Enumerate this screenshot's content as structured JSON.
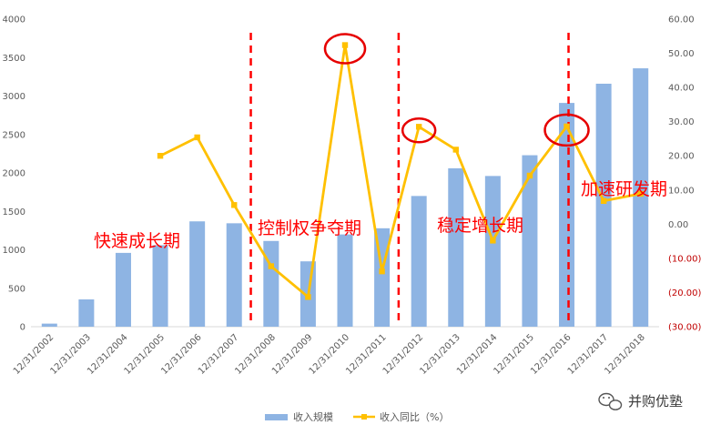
{
  "chart_data": {
    "type": "bar",
    "categories": [
      "12/31/2002",
      "12/31/2003",
      "12/31/2004",
      "12/31/2005",
      "12/31/2006",
      "12/31/2007",
      "12/31/2008",
      "12/31/2009",
      "12/31/2010",
      "12/31/2011",
      "12/31/2012",
      "12/31/2013",
      "12/31/2014",
      "12/31/2015",
      "12/31/2016",
      "12/31/2017",
      "12/31/2018"
    ],
    "series": [
      {
        "name": "收入规模",
        "type": "bar",
        "axis": "left",
        "color": "#8eb4e3",
        "values": [
          40,
          355,
          960,
          1060,
          1370,
          1345,
          1115,
          850,
          1200,
          1280,
          1700,
          2060,
          1960,
          2230,
          2910,
          3160,
          3360
        ]
      },
      {
        "name": "收入同比（%）",
        "type": "line",
        "axis": "right",
        "color": "#ffc000",
        "values": [
          null,
          null,
          null,
          20.0,
          25.4,
          5.6,
          -12.3,
          -21.3,
          52.4,
          -13.8,
          28.5,
          21.8,
          -4.8,
          14.2,
          28.6,
          6.8,
          8.9
        ]
      }
    ],
    "y_left": {
      "min": 0,
      "max": 4000,
      "ticks": [
        "0",
        "500",
        "1000",
        "1500",
        "2000",
        "2500",
        "3000",
        "3500",
        "4000"
      ]
    },
    "y_right": {
      "min": -30,
      "max": 60,
      "ticks": [
        "(30.00)",
        "(20.00)",
        "(10.00)",
        "0.00",
        "10.00",
        "20.00",
        "30.00",
        "40.00",
        "50.00",
        "60.00"
      ]
    },
    "grid": false,
    "legend_position": "bottom",
    "phase_annotations": [
      {
        "label": "快速成长期"
      },
      {
        "label": "控制权争夺期"
      },
      {
        "label": "稳定增长期"
      },
      {
        "label": "加速研发期"
      }
    ],
    "divider_color": "#ff0000",
    "highlight_color": "#e60000"
  },
  "watermark": {
    "text": "并购优塾",
    "icon": "wechat-icon"
  }
}
